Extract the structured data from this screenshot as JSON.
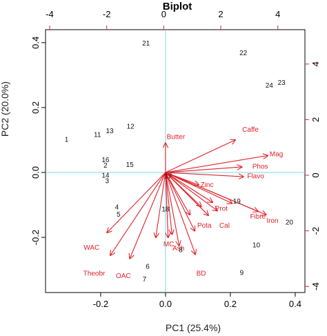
{
  "chart_data": {
    "type": "scatter",
    "title": "Biplot",
    "xlabel": "PC1 (25.4%)",
    "ylabel": "PC2 (20.0%)",
    "xlim": [
      -0.37,
      0.43
    ],
    "ylim": [
      -0.37,
      0.44
    ],
    "x_ticks": [
      -0.2,
      0.0,
      0.2,
      0.4
    ],
    "x_tick_labels": [
      "-0.2",
      "0.0",
      "0.2",
      "0.4"
    ],
    "y_ticks": [
      -0.2,
      0.0,
      0.2,
      0.4
    ],
    "y_tick_labels": [
      "-0.2",
      "0.0",
      "0.2",
      "0.4"
    ],
    "top_ticks": [
      -4,
      -2,
      0,
      2,
      4
    ],
    "top_tick_labels": [
      "-4",
      "-2",
      "0",
      "2",
      "4"
    ],
    "right_ticks": [
      -4,
      -2,
      0,
      2,
      4
    ],
    "right_tick_labels": [
      "-4",
      "-2",
      "0",
      "2",
      "4"
    ],
    "reference_lines": {
      "x": 0,
      "y": 0,
      "color": "#7fd4e6"
    },
    "score_points": [
      {
        "label": "1",
        "x": -0.305,
        "y": 0.103
      },
      {
        "label": "2",
        "x": -0.185,
        "y": 0.023
      },
      {
        "label": "3",
        "x": -0.18,
        "y": -0.025
      },
      {
        "label": "4",
        "x": -0.15,
        "y": -0.105
      },
      {
        "label": "5",
        "x": -0.145,
        "y": -0.128
      },
      {
        "label": "6",
        "x": -0.055,
        "y": -0.288
      },
      {
        "label": "7",
        "x": -0.065,
        "y": -0.328
      },
      {
        "label": "8",
        "x": 0.047,
        "y": -0.237
      },
      {
        "label": "9",
        "x": 0.235,
        "y": -0.307
      },
      {
        "label": "10",
        "x": 0.28,
        "y": -0.222
      },
      {
        "label": "11",
        "x": -0.21,
        "y": 0.118
      },
      {
        "label": "12",
        "x": -0.108,
        "y": 0.143
      },
      {
        "label": "13",
        "x": -0.172,
        "y": 0.13
      },
      {
        "label": "14",
        "x": -0.185,
        "y": -0.008
      },
      {
        "label": "15",
        "x": -0.11,
        "y": 0.025
      },
      {
        "label": "16",
        "x": -0.185,
        "y": 0.04
      },
      {
        "label": "17",
        "x": 0.008,
        "y": -0.01
      },
      {
        "label": "18",
        "x": 0.0,
        "y": -0.112
      },
      {
        "label": "19",
        "x": 0.22,
        "y": -0.087
      },
      {
        "label": "20",
        "x": 0.382,
        "y": -0.152
      },
      {
        "label": "21",
        "x": -0.06,
        "y": 0.4
      },
      {
        "label": "22",
        "x": 0.24,
        "y": 0.37
      },
      {
        "label": "23",
        "x": 0.358,
        "y": 0.278
      },
      {
        "label": "24",
        "x": 0.32,
        "y": 0.27
      }
    ],
    "loadings": [
      {
        "label": "Butter",
        "x": 0.0,
        "y": 0.09,
        "lx": 0.032,
        "ly": 0.103
      },
      {
        "label": "Caffe",
        "x": 0.215,
        "y": 0.1,
        "lx": 0.262,
        "ly": 0.125
      },
      {
        "label": "Mag",
        "x": 0.315,
        "y": 0.052,
        "lx": 0.342,
        "ly": 0.05
      },
      {
        "label": "Phos",
        "x": 0.235,
        "y": 0.017,
        "lx": 0.292,
        "ly": 0.012
      },
      {
        "label": "Flavo",
        "x": 0.24,
        "y": -0.013,
        "lx": 0.278,
        "ly": -0.018
      },
      {
        "label": "Zinc",
        "x": 0.102,
        "y": -0.038,
        "lx": 0.128,
        "ly": -0.045
      },
      {
        "label": "Prot",
        "x": 0.145,
        "y": -0.092,
        "lx": 0.172,
        "ly": -0.118
      },
      {
        "label": "Fibre",
        "x": 0.285,
        "y": -0.12,
        "lx": 0.285,
        "ly": -0.142
      },
      {
        "label": "Iron",
        "x": 0.31,
        "y": -0.13,
        "lx": 0.33,
        "ly": -0.155
      },
      {
        "label": "Cal",
        "x": 0.16,
        "y": -0.118,
        "lx": 0.182,
        "ly": -0.17
      },
      {
        "label": "Pota",
        "x": 0.132,
        "y": -0.132,
        "lx": 0.12,
        "ly": -0.17
      },
      {
        "label": "Ash",
        "x": 0.042,
        "y": -0.225,
        "lx": 0.04,
        "ly": -0.24
      },
      {
        "label": "MC",
        "x": 0.008,
        "y": -0.2,
        "lx": 0.01,
        "ly": -0.228
      },
      {
        "label": "BD",
        "x": 0.092,
        "y": -0.252,
        "lx": 0.11,
        "ly": -0.318
      },
      {
        "label": "WAC",
        "x": -0.18,
        "y": -0.185,
        "lx": -0.228,
        "ly": -0.238
      },
      {
        "label": "Theobr",
        "x": -0.17,
        "y": -0.255,
        "lx": -0.22,
        "ly": -0.318
      },
      {
        "label": "OAC",
        "x": -0.11,
        "y": -0.265,
        "lx": -0.13,
        "ly": -0.325
      },
      {
        "label": "",
        "x": -0.03,
        "y": -0.2,
        "lx": 0,
        "ly": 0
      },
      {
        "label": "",
        "x": 0.02,
        "y": -0.19,
        "lx": 0,
        "ly": 0
      },
      {
        "label": "",
        "x": 0.075,
        "y": -0.13,
        "lx": 0,
        "ly": 0
      },
      {
        "label": "",
        "x": 0.11,
        "y": -0.105,
        "lx": 0,
        "ly": 0
      },
      {
        "label": "",
        "x": 0.205,
        "y": -0.095,
        "lx": 0,
        "ly": 0
      },
      {
        "label": "",
        "x": 0.09,
        "y": -0.18,
        "lx": 0,
        "ly": 0
      }
    ],
    "colors": {
      "loadings": "#e0202a",
      "reference": "#7fd4e6",
      "scores": "#111111"
    }
  }
}
